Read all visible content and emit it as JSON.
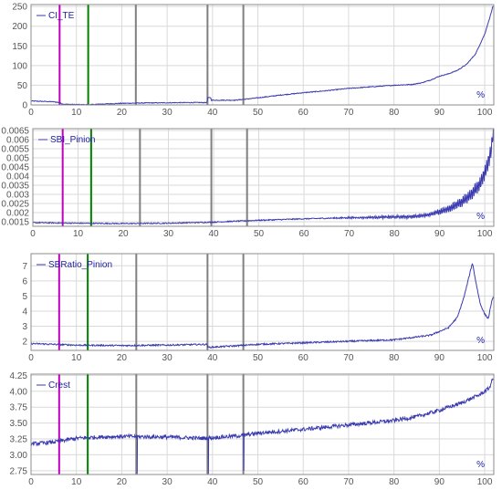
{
  "chart_data": [
    {
      "type": "line",
      "series": [
        {
          "name": "CI_TE",
          "color": "#3a3ab0"
        }
      ],
      "xlim": [
        0,
        102
      ],
      "ylim": [
        0,
        255
      ],
      "xticks": [
        0,
        10,
        20,
        30,
        40,
        50,
        60,
        70,
        80,
        90,
        100
      ],
      "yticks": [
        0,
        50,
        100,
        150,
        200,
        250
      ],
      "ytick_labels": [
        "0",
        "50",
        "100",
        "150",
        "200",
        "250"
      ],
      "x_unit": "%",
      "markers": [
        {
          "x": 6.3,
          "color": "#c000c0"
        },
        {
          "x": 12.6,
          "color": "#008000"
        },
        {
          "x": 23.1,
          "color": "#808080"
        },
        {
          "x": 38.9,
          "color": "#808080"
        },
        {
          "x": 46.8,
          "color": "#808080"
        }
      ],
      "profile": [
        [
          0,
          10
        ],
        [
          5,
          8
        ],
        [
          6.3,
          6
        ],
        [
          7,
          2
        ],
        [
          10,
          1
        ],
        [
          12.6,
          0.5
        ],
        [
          15,
          2
        ],
        [
          20,
          4
        ],
        [
          25,
          5
        ],
        [
          30,
          5.5
        ],
        [
          35,
          6
        ],
        [
          38.8,
          6
        ],
        [
          38.9,
          18
        ],
        [
          39.6,
          19
        ],
        [
          39.7,
          12
        ],
        [
          45,
          12
        ],
        [
          50,
          18
        ],
        [
          55,
          25
        ],
        [
          60,
          31
        ],
        [
          65,
          36
        ],
        [
          70,
          42
        ],
        [
          75,
          46
        ],
        [
          80,
          50
        ],
        [
          84,
          52
        ],
        [
          86,
          56
        ],
        [
          88,
          63
        ],
        [
          90,
          73
        ],
        [
          92,
          79
        ],
        [
          94,
          88
        ],
        [
          96,
          103
        ],
        [
          98,
          130
        ],
        [
          100,
          180
        ],
        [
          101.2,
          225
        ],
        [
          101.8,
          250
        ]
      ],
      "noise": 1.0,
      "osc_amp": 0,
      "osc_start": 100,
      "spikes": []
    },
    {
      "type": "line",
      "series": [
        {
          "name": "SBI_Pinion",
          "color": "#3a3ab0"
        }
      ],
      "xlim": [
        0,
        102
      ],
      "ylim": [
        0.00125,
        0.0066
      ],
      "xticks": [
        0,
        10,
        20,
        30,
        40,
        50,
        60,
        70,
        80,
        90,
        100
      ],
      "yticks": [
        0.0015,
        0.002,
        0.0025,
        0.003,
        0.0035,
        0.004,
        0.0045,
        0.005,
        0.0055,
        0.006,
        0.0065
      ],
      "ytick_labels": [
        "0.0015",
        "0.002",
        "0.0025",
        "0.003",
        "0.0035",
        "0.004",
        "0.0045",
        "0.005",
        "0.0055",
        "0.006",
        "0.0065"
      ],
      "x_unit": "%",
      "markers": [
        {
          "x": 6.6,
          "color": "#c000c0"
        },
        {
          "x": 12.9,
          "color": "#008000"
        },
        {
          "x": 23.7,
          "color": "#808080"
        },
        {
          "x": 39.5,
          "color": "#808080"
        },
        {
          "x": 47.4,
          "color": "#808080"
        }
      ],
      "profile": [
        [
          0,
          0.00145
        ],
        [
          10,
          0.00142
        ],
        [
          20,
          0.0014
        ],
        [
          30,
          0.00142
        ],
        [
          40,
          0.00148
        ],
        [
          50,
          0.00158
        ],
        [
          60,
          0.00166
        ],
        [
          70,
          0.00172
        ],
        [
          80,
          0.00176
        ],
        [
          84,
          0.00178
        ],
        [
          88,
          0.0019
        ],
        [
          92,
          0.0022
        ],
        [
          95,
          0.0026
        ],
        [
          97,
          0.003
        ],
        [
          99,
          0.0036
        ],
        [
          100.5,
          0.0045
        ],
        [
          101.5,
          0.0055
        ],
        [
          101.9,
          0.0066
        ]
      ],
      "noise": 3e-05,
      "osc_amp": 0.0001,
      "osc_start": 62,
      "spikes": []
    },
    {
      "type": "line",
      "series": [
        {
          "name": "SBRatio_Pinion",
          "color": "#3a3ab0"
        }
      ],
      "xlim": [
        0,
        102
      ],
      "ylim": [
        1.4,
        7.8
      ],
      "xticks": [
        0,
        10,
        20,
        30,
        40,
        50,
        60,
        70,
        80,
        90,
        100
      ],
      "yticks": [
        2,
        3,
        4,
        5,
        6,
        7
      ],
      "ytick_labels": [
        "2",
        "3",
        "4",
        "5",
        "6",
        "7"
      ],
      "x_unit": "%",
      "markers": [
        {
          "x": 6.2,
          "color": "#c000c0"
        },
        {
          "x": 12.5,
          "color": "#008000"
        },
        {
          "x": 23.2,
          "color": "#808080"
        },
        {
          "x": 38.9,
          "color": "#808080"
        },
        {
          "x": 46.8,
          "color": "#808080"
        }
      ],
      "profile": [
        [
          0,
          1.85
        ],
        [
          10,
          1.75
        ],
        [
          20,
          1.72
        ],
        [
          30,
          1.75
        ],
        [
          38.8,
          1.8
        ],
        [
          39,
          1.6
        ],
        [
          45,
          1.7
        ],
        [
          50,
          1.8
        ],
        [
          60,
          1.9
        ],
        [
          70,
          2.0
        ],
        [
          80,
          2.1
        ],
        [
          88,
          2.4
        ],
        [
          92,
          2.9
        ],
        [
          94,
          3.6
        ],
        [
          95.5,
          5.0
        ],
        [
          96.8,
          6.6
        ],
        [
          97.3,
          7.2
        ],
        [
          98,
          6.0
        ],
        [
          99,
          4.5
        ],
        [
          100,
          3.8
        ],
        [
          100.8,
          3.5
        ],
        [
          101.5,
          4.6
        ],
        [
          101.9,
          4.9
        ]
      ],
      "noise": 0.05,
      "osc_amp": 0,
      "osc_start": 100,
      "spikes": []
    },
    {
      "type": "line",
      "series": [
        {
          "name": "Crest",
          "color": "#3a3ab0"
        }
      ],
      "xlim": [
        0,
        102
      ],
      "ylim": [
        2.69,
        4.27
      ],
      "xticks": [
        0,
        10,
        20,
        30,
        40,
        50,
        60,
        70,
        80,
        90,
        100
      ],
      "yticks": [
        2.75,
        3.0,
        3.25,
        3.5,
        3.75,
        4.0,
        4.25
      ],
      "ytick_labels": [
        "2.75",
        "3.00",
        "3.25",
        "3.50",
        "3.75",
        "4.00",
        "4.25"
      ],
      "x_unit": "%",
      "markers": [
        {
          "x": 6.2,
          "color": "#c000c0"
        },
        {
          "x": 12.5,
          "color": "#008000"
        },
        {
          "x": 23.2,
          "color": "#808080"
        },
        {
          "x": 38.9,
          "color": "#808080"
        },
        {
          "x": 46.8,
          "color": "#808080"
        }
      ],
      "profile": [
        [
          0,
          3.17
        ],
        [
          5,
          3.2
        ],
        [
          10,
          3.26
        ],
        [
          15,
          3.28
        ],
        [
          20,
          3.29
        ],
        [
          30,
          3.28
        ],
        [
          38,
          3.26
        ],
        [
          40,
          3.27
        ],
        [
          46,
          3.3
        ],
        [
          50,
          3.34
        ],
        [
          60,
          3.4
        ],
        [
          70,
          3.47
        ],
        [
          80,
          3.54
        ],
        [
          85,
          3.6
        ],
        [
          90,
          3.7
        ],
        [
          95,
          3.82
        ],
        [
          99,
          3.95
        ],
        [
          101,
          4.05
        ],
        [
          101.8,
          4.2
        ]
      ],
      "noise": 0.03,
      "osc_amp": 0,
      "osc_start": 100,
      "spikes": [
        [
          23.4,
          2.7
        ],
        [
          39.1,
          2.7
        ],
        [
          46.9,
          2.75
        ]
      ]
    }
  ]
}
